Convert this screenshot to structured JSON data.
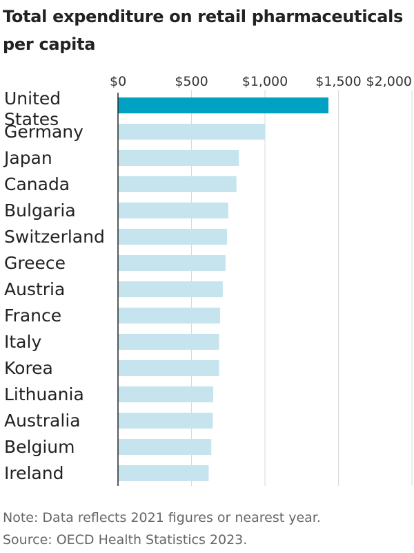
{
  "chart_data": {
    "type": "bar",
    "orientation": "horizontal",
    "title": "Total expenditure on retail pharmaceuticals per capita",
    "xlabel": "",
    "ylabel": "",
    "xlim": [
      0,
      2000
    ],
    "ticks": [
      0,
      500,
      1000,
      1500,
      2000
    ],
    "tick_labels": [
      "$0",
      "$500",
      "$1,000",
      "$1,500",
      "$2,000"
    ],
    "categories": [
      "United States",
      "Germany",
      "Japan",
      "Canada",
      "Bulgaria",
      "Switzerland",
      "Greece",
      "Austria",
      "France",
      "Italy",
      "Korea",
      "Lithuania",
      "Australia",
      "Belgium",
      "Ireland"
    ],
    "values": [
      1432,
      1003,
      823,
      806,
      750,
      742,
      732,
      713,
      695,
      688,
      688,
      648,
      645,
      635,
      617
    ],
    "highlight": "United States",
    "colors": {
      "highlight": "#00a1c1",
      "bar": "#c6e4ed",
      "grid": "#d9d9d9",
      "axis": "#222222"
    }
  },
  "footer": {
    "note": "Note: Data reflects 2021 figures or nearest year.",
    "source": "Source: OECD Health Statistics 2023."
  }
}
